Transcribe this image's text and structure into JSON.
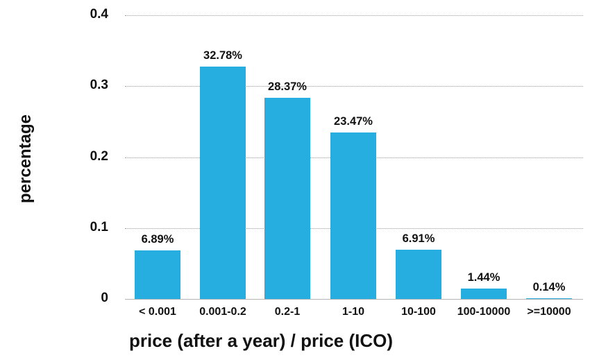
{
  "chart_data": {
    "type": "bar",
    "title": "",
    "xlabel": "price (after a year) / price (ICO)",
    "ylabel": "percentage",
    "ylim": [
      0,
      0.4
    ],
    "yticks": [
      "0",
      "0.1",
      "0.2",
      "0.3",
      "0.4"
    ],
    "grid": true,
    "categories": [
      "< 0.001",
      "0.001-0.2",
      "0.2-1",
      "1-10",
      "10-100",
      "100-10000",
      ">=10000"
    ],
    "values": [
      0.0689,
      0.3278,
      0.2837,
      0.2347,
      0.0691,
      0.0144,
      0.0014
    ],
    "labels": [
      "6.89%",
      "32.78%",
      "28.37%",
      "23.47%",
      "6.91%",
      "1.44%",
      "0.14%"
    ],
    "bar_color": "#27aee0"
  }
}
